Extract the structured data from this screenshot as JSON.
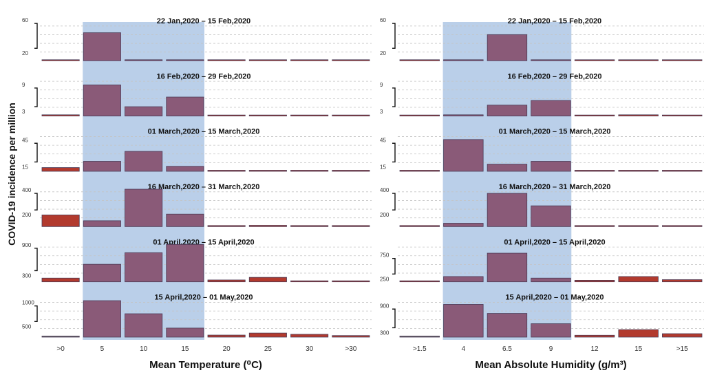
{
  "ylabel": "COVID-19  incidence per million",
  "colors": {
    "highlight": "#a9c3e4",
    "bar_in_range": "#8a5a78",
    "bar_out_range": "#b23a2e",
    "bar_stroke": "#4a3a55",
    "grid": "#c4c4c4"
  },
  "chart_data": [
    {
      "type": "bar",
      "xlabel": "Mean Temperature (⁰C)",
      "categories": [
        ">0",
        "5",
        "10",
        "15",
        "20",
        "25",
        "30",
        ">30"
      ],
      "highlight": [
        "5",
        "15"
      ],
      "panels": [
        {
          "title": "22 Jan,2020 – 15 Feb,2020",
          "ylim": [
            0,
            60
          ],
          "yticks": [
            20,
            60
          ],
          "values": [
            0.6,
            45,
            0.5,
            0.5,
            0.5,
            0.5,
            0.8,
            0.5
          ]
        },
        {
          "title": "16 Feb,2020 – 29 Feb,2020",
          "ylim": [
            0,
            12
          ],
          "yticks": [
            3,
            9
          ],
          "values": [
            0.4,
            10,
            3,
            6.1,
            0.3,
            0.2,
            0.2,
            0.2
          ]
        },
        {
          "title": "01 March,2020 – 15 March,2020",
          "ylim": [
            0,
            60
          ],
          "yticks": [
            15,
            45
          ],
          "values": [
            6,
            16,
            32,
            8,
            1,
            1.3,
            0.5,
            0.5
          ]
        },
        {
          "title": "16 March,2020 – 31 March,2020",
          "ylim": [
            0,
            450
          ],
          "yticks": [
            200,
            400
          ],
          "values": [
            140,
            70,
            470,
            150,
            10,
            15,
            5,
            5
          ]
        },
        {
          "title": "01 April,2020 – 15 April,2020",
          "ylim": [
            0,
            1000
          ],
          "yticks": [
            300,
            900
          ],
          "values": [
            100,
            470,
            780,
            1000,
            50,
            120,
            20,
            20
          ]
        },
        {
          "title": "15 April,2020 – 01 May,2020",
          "ylim": [
            0,
            1200
          ],
          "yticks": [
            500,
            1000
          ],
          "values": [
            0,
            1170,
            750,
            290,
            65,
            130,
            90,
            50
          ]
        }
      ]
    },
    {
      "type": "bar",
      "xlabel": "Mean Absolute Humidity (g/m³)",
      "categories": [
        ">1.5",
        "4",
        "6.5",
        "9",
        "12",
        "15",
        ">15"
      ],
      "highlight": [
        "4",
        "9"
      ],
      "panels": [
        {
          "title": "22 Jan,2020 – 15 Feb,2020",
          "ylim": [
            0,
            60
          ],
          "yticks": [
            20,
            60
          ],
          "values": [
            0.5,
            0.5,
            42,
            0.5,
            0.5,
            0.5,
            0.5
          ]
        },
        {
          "title": "16 Feb,2020 – 29 Feb,2020",
          "ylim": [
            0,
            12
          ],
          "yticks": [
            3,
            9
          ],
          "values": [
            0.2,
            0.4,
            3.5,
            5,
            0.3,
            0.4,
            0.2
          ]
        },
        {
          "title": "01 March,2020 – 15 March,2020",
          "ylim": [
            0,
            60
          ],
          "yticks": [
            15,
            45
          ],
          "values": [
            0.3,
            51,
            11.5,
            16,
            1.5,
            0.4,
            0.8
          ]
        },
        {
          "title": "16 March,2020 – 31 March,2020",
          "ylim": [
            0,
            450
          ],
          "yticks": [
            200,
            400
          ],
          "values": [
            2,
            40,
            400,
            250,
            5,
            3,
            8
          ]
        },
        {
          "title": "01 April,2020 – 15 April,2020",
          "ylim": [
            0,
            1200
          ],
          "yticks": [
            250,
            750
          ],
          "values": [
            10,
            170,
            920,
            120,
            50,
            170,
            70
          ]
        },
        {
          "title": "15 April,2020 – 01 May,2020",
          "ylim": [
            0,
            1200
          ],
          "yticks": [
            300,
            900
          ],
          "values": [
            0,
            1050,
            760,
            430,
            60,
            240,
            110
          ]
        }
      ]
    }
  ]
}
